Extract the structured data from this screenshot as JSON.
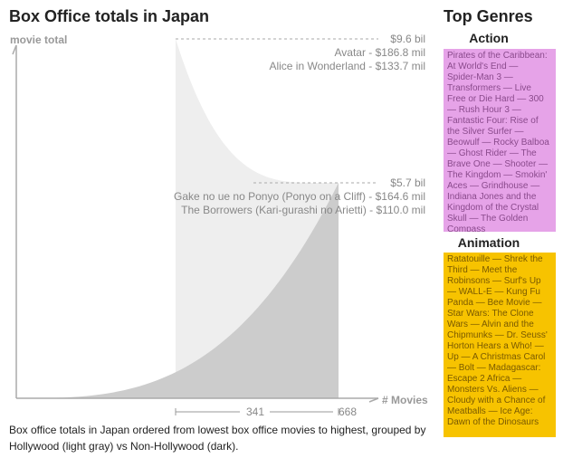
{
  "title": "Box Office totals in Japan",
  "genres_title": "Top Genres",
  "caption": "Box office totals in Japan ordered from lowest box office movies to highest, grouped by Hollywood (light gray) vs Non-Hollywood (dark).",
  "genres": [
    {
      "name": "Action",
      "color": "#e6a3e8",
      "text": "Pirates of the Caribbean: At World's End — Spider-Man 3 — Transformers — Live Free or Die Hard — 300 — Rush Hour 3 — Fantastic Four: Rise of the Silver Surfer — Beowulf — Rocky Balboa — Ghost Rider — The Brave One — Shooter — The Kingdom — Smokin' Aces — Grindhouse — Indiana Jones and the Kingdom of the Crystal Skull — The Golden Compass"
    },
    {
      "name": "Animation",
      "color": "#f7c300",
      "text": "Ratatouille — Shrek the Third — Meet the Robinsons — Surf's Up — WALL-E — Kung Fu Panda — Bee Movie — Star Wars: The Clone Wars — Alvin and the Chipmunks — Dr. Seuss' Horton Hears a Who! — Up — A Christmas Carol — Bolt — Madagascar: Escape 2 Africa — Monsters Vs. Aliens — Cloudy with a Chance of Meatballs — Ice Age: Dawn of the Dinosaurs"
    }
  ],
  "chart_data": {
    "type": "area",
    "title": "Box Office totals in Japan",
    "ylabel": "movie total",
    "xlabel": "# Movies",
    "x_ticks": [
      "341",
      "668"
    ],
    "series": [
      {
        "color": "#eeeeee",
        "count": 668,
        "total_label": "$9.6 bil",
        "top_movies": [
          "Avatar - $186.8 mil",
          "Alice in Wonderland - $133.7 mil"
        ]
      },
      {
        "color": "#cccccc",
        "count": 341,
        "total_label": "$5.7 bil",
        "top_movies": [
          "Gake no ue no Ponyo (Ponyo on a Cliff) - $164.6 mil",
          "The Borrowers (Kari-gurashi no Arietti) - $110.0 mil"
        ]
      }
    ]
  }
}
